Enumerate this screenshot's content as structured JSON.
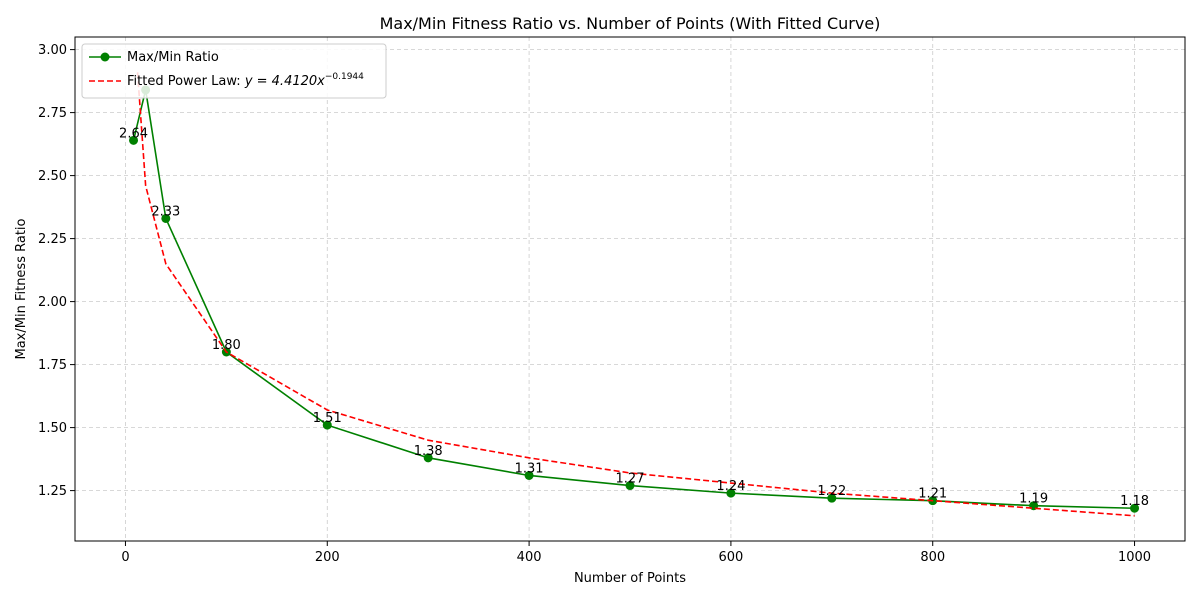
{
  "chart_data": {
    "type": "line",
    "title": "Max/Min Fitness Ratio vs. Number of Points (With Fitted Curve)",
    "xlabel": "Number of Points",
    "ylabel": "Max/Min Fitness Ratio",
    "xlim": [
      -50,
      1050
    ],
    "ylim": [
      1.05,
      3.05
    ],
    "xticks": [
      0,
      200,
      400,
      600,
      800,
      1000
    ],
    "yticks": [
      1.25,
      1.5,
      1.75,
      2.0,
      2.25,
      2.5,
      2.75,
      3.0
    ],
    "ytick_labels": [
      "1.25",
      "1.50",
      "1.75",
      "2.00",
      "2.25",
      "2.50",
      "2.75",
      "3.00"
    ],
    "grid": true,
    "legend_position": "upper-left",
    "series": [
      {
        "name": "Max/Min Ratio",
        "color": "#008000",
        "style": "solid-with-markers",
        "x": [
          8,
          20,
          40,
          100,
          200,
          300,
          400,
          500,
          600,
          700,
          800,
          900,
          1000
        ],
        "y": [
          2.64,
          2.84,
          2.33,
          1.8,
          1.51,
          1.38,
          1.31,
          1.27,
          1.24,
          1.22,
          1.21,
          1.19,
          1.18
        ],
        "labels": [
          "2.64",
          "",
          "2.33",
          "1.80",
          "1.51",
          "1.38",
          "1.31",
          "1.27",
          "1.24",
          "1.22",
          "1.21",
          "1.19",
          "1.18"
        ]
      },
      {
        "name": "Fitted Power Law: y = 4.4120x^-0.1944",
        "legend_prefix": "Fitted Power Law: ",
        "legend_formula_base": "y = 4.4120x",
        "legend_formula_exp": "−0.1944",
        "color": "#ff0000",
        "style": "dashed",
        "x": [
          12,
          20,
          40,
          100,
          200,
          300,
          400,
          500,
          600,
          700,
          800,
          900,
          1000
        ],
        "y": [
          2.91,
          2.46,
          2.15,
          1.8,
          1.57,
          1.45,
          1.38,
          1.32,
          1.28,
          1.24,
          1.21,
          1.18,
          1.15
        ]
      }
    ]
  }
}
